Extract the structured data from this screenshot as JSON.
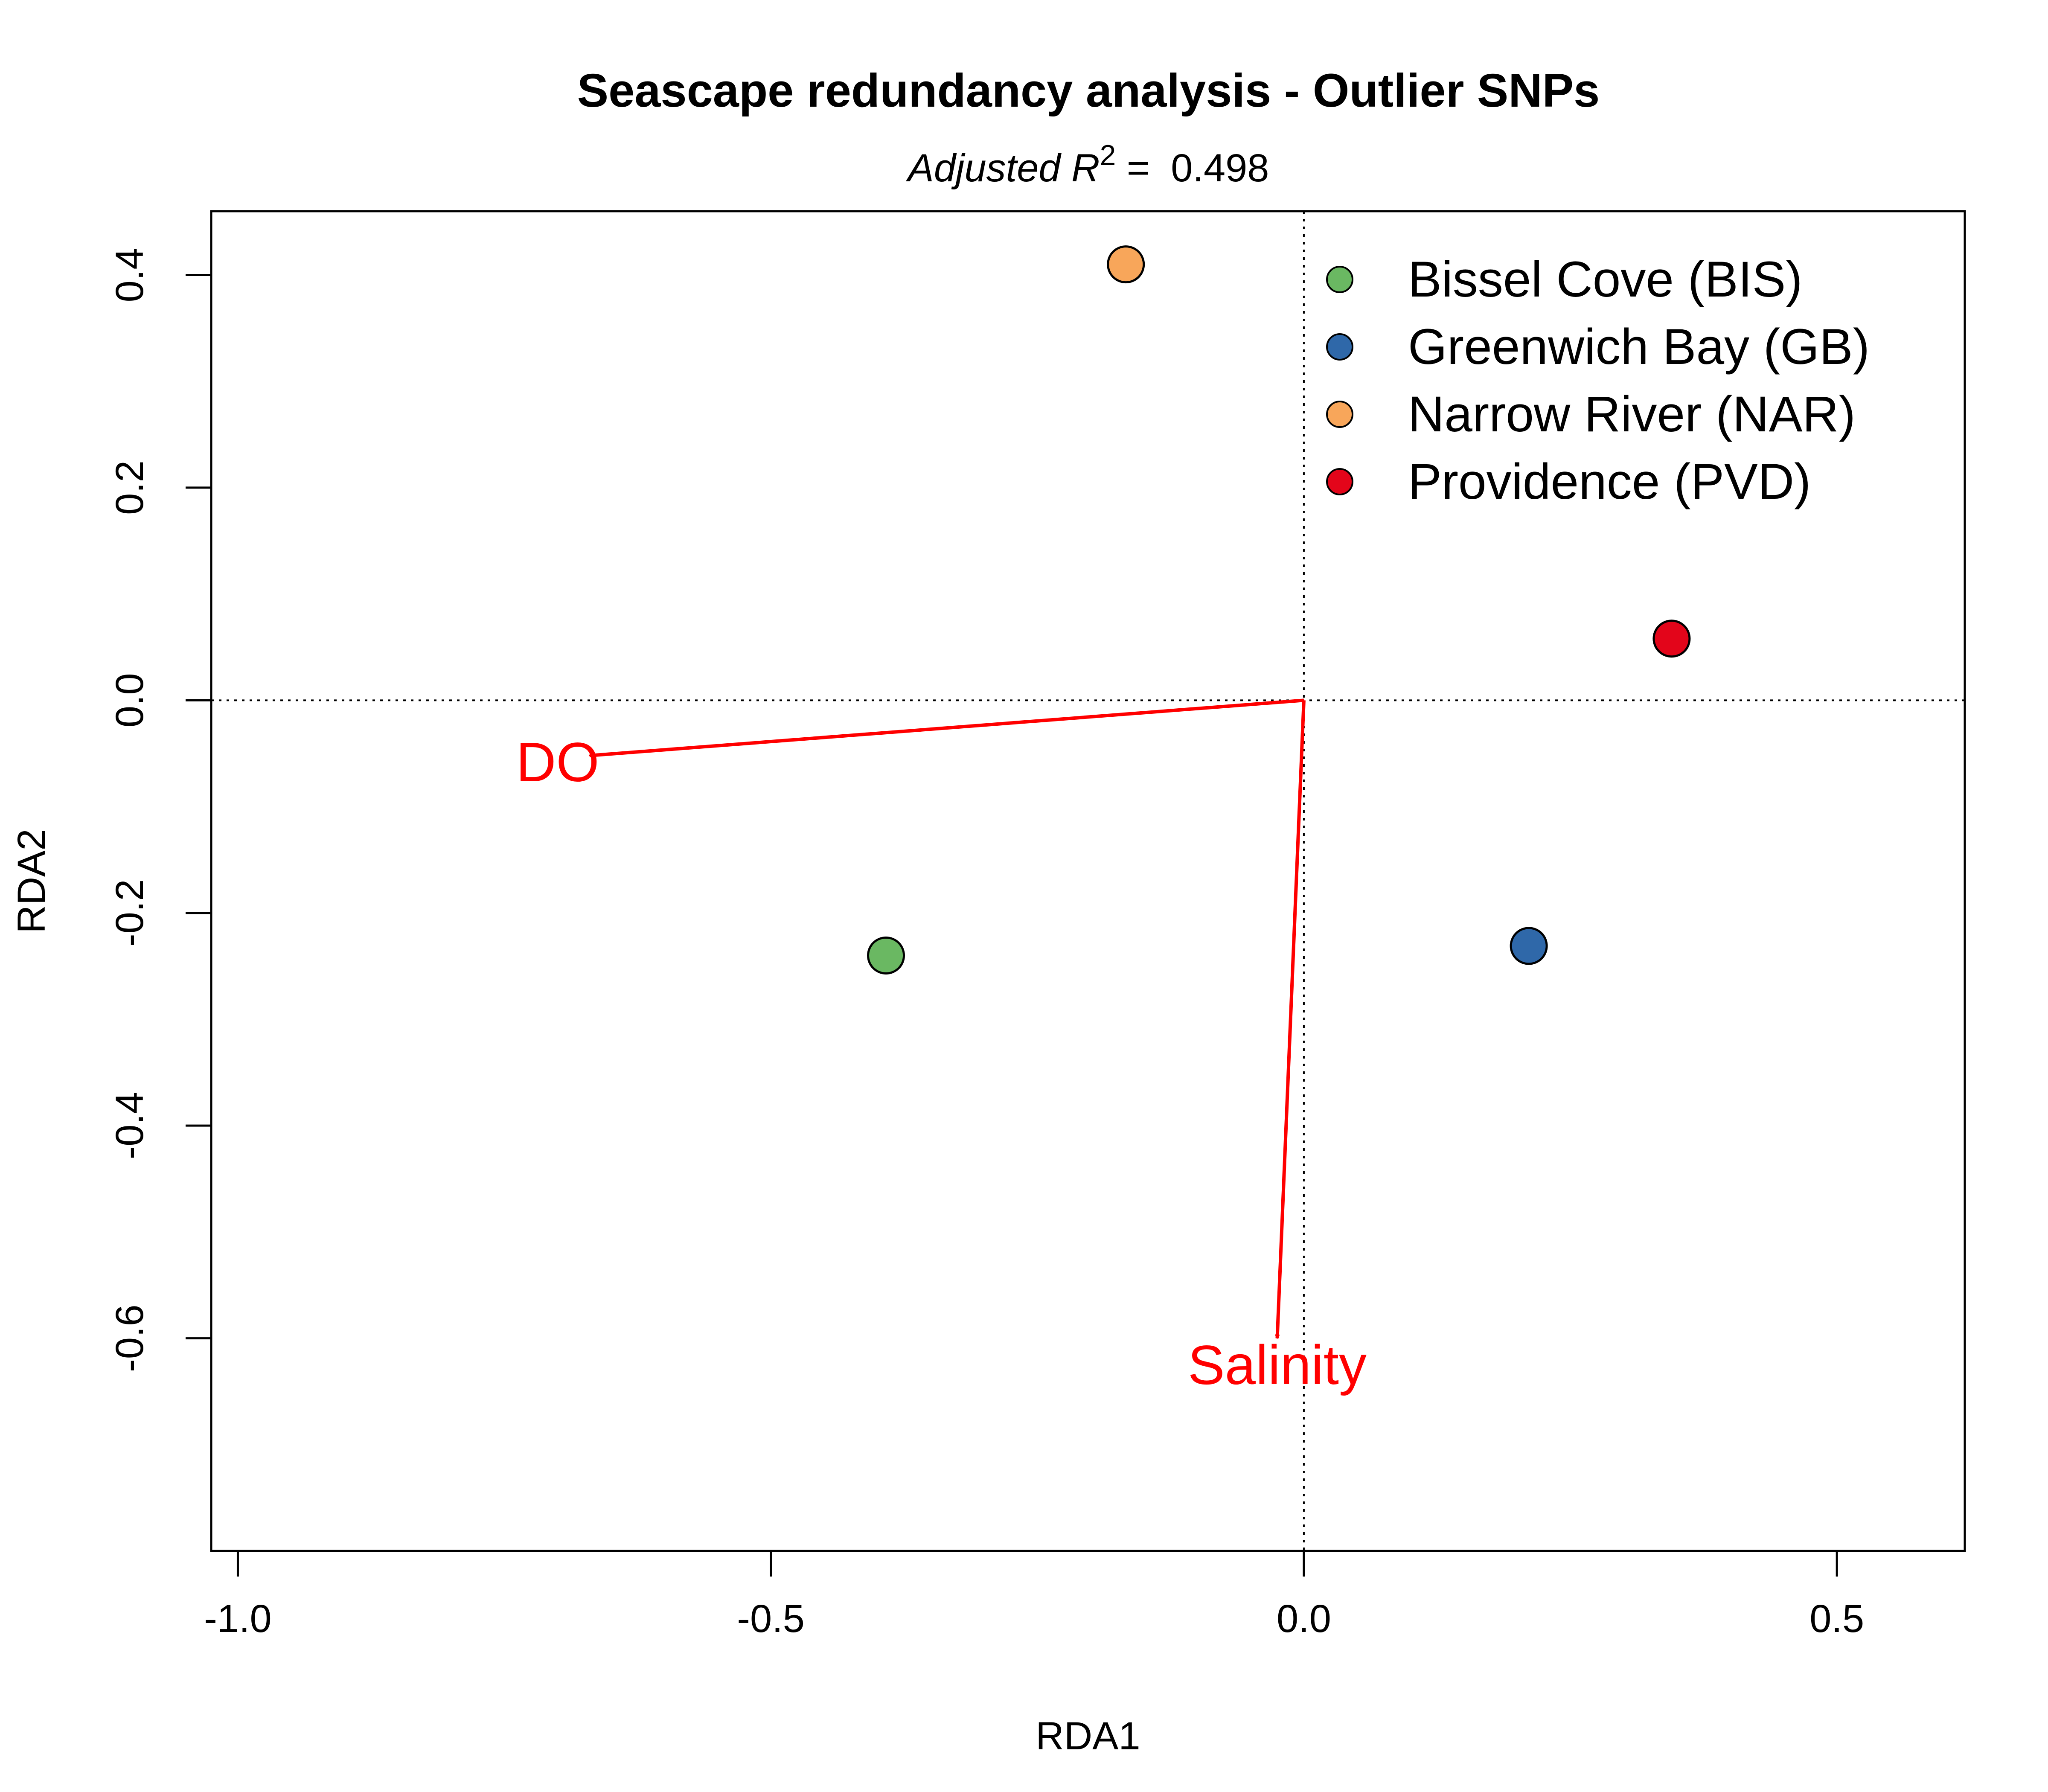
{
  "chart_data": {
    "type": "scatter",
    "title": "Seascape redundancy analysis - Outlier SNPs",
    "subtitle": {
      "prefix": "Adjusted R",
      "superscript": "2",
      "equals": " = ",
      "value": "0.498"
    },
    "xlabel": "RDA1",
    "ylabel": "RDA2",
    "xlim": [
      -1.025,
      0.62
    ],
    "ylim": [
      -0.8,
      0.46
    ],
    "xticks": [
      {
        "value": -1.0,
        "label": "-1.0"
      },
      {
        "value": -0.5,
        "label": "-0.5"
      },
      {
        "value": 0.0,
        "label": "0.0"
      },
      {
        "value": 0.5,
        "label": "0.5"
      }
    ],
    "yticks": [
      {
        "value": 0.4,
        "label": "0.4"
      },
      {
        "value": 0.2,
        "label": "0.2"
      },
      {
        "value": 0.0,
        "label": "0.0"
      },
      {
        "value": -0.2,
        "label": "-0.2"
      },
      {
        "value": -0.4,
        "label": "-0.4"
      },
      {
        "value": -0.6,
        "label": "-0.6"
      }
    ],
    "reference_lines": {
      "x": 0,
      "y": 0,
      "style": "dotted"
    },
    "legend": {
      "position": "top-right",
      "frame": false
    },
    "series": [
      {
        "name": "Bissel Cove (BIS)",
        "color": "#6ab862",
        "x": -0.392,
        "y": -0.24
      },
      {
        "name": "Greenwich Bay (GB)",
        "color": "#2f68a9",
        "x": 0.211,
        "y": -0.231
      },
      {
        "name": "Narrow River (NAR)",
        "color": "#f8a65a",
        "x": -0.167,
        "y": 0.41
      },
      {
        "name": "Providence (PVD)",
        "color": "#e3051a",
        "x": 0.345,
        "y": 0.058
      }
    ],
    "biplot_arrows": [
      {
        "label": "DO",
        "color": "#ff0000",
        "x": -0.67,
        "y": -0.052,
        "label_x": -0.7,
        "label_y": -0.058
      },
      {
        "label": "Salinity",
        "color": "#ff0000",
        "x": -0.025,
        "y": -0.6,
        "label_x": -0.025,
        "label_y": -0.625
      }
    ]
  }
}
